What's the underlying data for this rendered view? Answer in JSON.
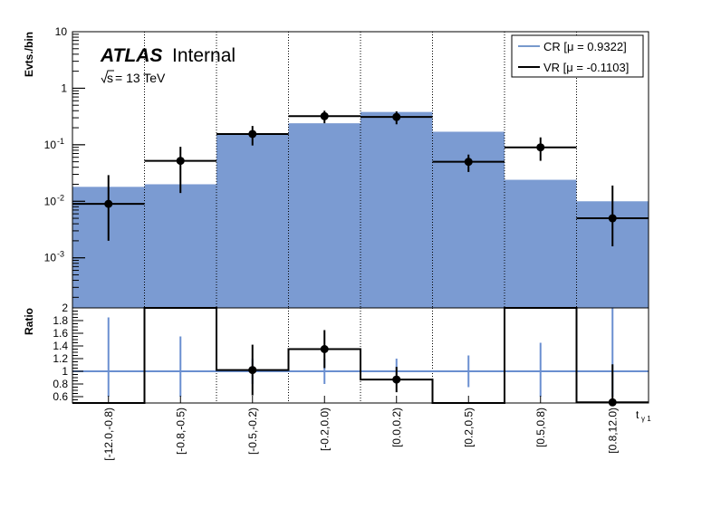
{
  "chart_data": [
    {
      "type": "bar",
      "panel": "main",
      "y_scale": "log",
      "ylabel": "Evts./bin",
      "ylim": [
        0.00013,
        10
      ],
      "y_tick_labels": [
        {
          "value": 0.001,
          "base": "10",
          "exp": "-3"
        },
        {
          "value": 0.01,
          "base": "10",
          "exp": "-2"
        },
        {
          "value": 0.1,
          "base": "10",
          "exp": "-1"
        },
        {
          "value": 1,
          "base": "1",
          "exp": ""
        },
        {
          "value": 10,
          "base": "10",
          "exp": ""
        }
      ],
      "categories": [
        "[-12.0,-0.8)",
        "[-0.8,-0.5)",
        "[-0.5,-0.2)",
        "[-0.2,0.0)",
        "[0.0,0.2)",
        "[0.2,0.5)",
        "[0.5,0.8)",
        "[0.8,12.0)"
      ],
      "series": [
        {
          "name": "CR [μ = 0.9322]",
          "style": "filled",
          "values": [
            0.018,
            0.02,
            0.16,
            0.24,
            0.38,
            0.17,
            0.024,
            0.01
          ]
        },
        {
          "name": "VR [μ = -0.1103]",
          "style": "points",
          "values": [
            0.009,
            0.052,
            0.155,
            0.32,
            0.31,
            0.05,
            0.09,
            0.005
          ],
          "err_low": [
            0.007,
            0.038,
            0.058,
            0.08,
            0.08,
            0.017,
            0.038,
            0.0034
          ],
          "err_high": [
            0.02,
            0.04,
            0.06,
            0.08,
            0.08,
            0.017,
            0.045,
            0.014
          ]
        }
      ]
    },
    {
      "type": "line",
      "panel": "ratio",
      "ylabel": "Ratio",
      "ylim": [
        0.5,
        2.0
      ],
      "y_ticks": [
        0.6,
        0.8,
        1.0,
        1.2,
        1.4,
        1.6,
        1.8,
        2.0
      ],
      "y_tick_labels": [
        "0.6",
        "0.8",
        "1",
        "1.2",
        "1.4",
        "1.6",
        "1.8",
        "2"
      ],
      "xlabel": "t",
      "xlabel_sub": "γ 1",
      "categories": [
        "[-12.0,-0.8)",
        "[-0.8,-0.5)",
        "[-0.5,-0.2)",
        "[-0.2,0.0)",
        "[0.0,0.2)",
        "[0.2,0.5)",
        "[0.5,0.8)",
        "[0.8,12.0)"
      ],
      "reference_line": 1.0,
      "series": [
        {
          "name": "CR",
          "values": [
            1,
            1,
            1,
            1,
            1,
            1,
            1,
            1
          ],
          "err_low": [
            0.4,
            0.4,
            0.2,
            0.2,
            0.2,
            0.25,
            0.4,
            0.4
          ],
          "err_high": [
            0.85,
            0.55,
            0.2,
            0.2,
            0.2,
            0.25,
            0.45,
            1.0
          ]
        },
        {
          "name": "VR",
          "values": [
            0.5,
            2.0,
            1.02,
            1.35,
            0.87,
            0.5,
            2.0,
            0.51
          ],
          "show_points": [
            false,
            false,
            true,
            true,
            true,
            false,
            false,
            true
          ],
          "err_low": [
            0,
            0,
            0.4,
            0.3,
            0.2,
            0,
            0,
            0.1
          ],
          "err_high": [
            0,
            0,
            0.4,
            0.3,
            0.2,
            0,
            0,
            0.6
          ]
        }
      ]
    }
  ],
  "labels": {
    "atlas": "ATLAS",
    "internal": "Internal",
    "sqrt_s": "s",
    "energy": " = 13 TeV"
  },
  "legend": {
    "position": "top-right",
    "items": [
      {
        "label": "CR [μ = 0.9322]",
        "color": "#7799cc"
      },
      {
        "label": "VR [μ = -0.1103]",
        "color": "#000000"
      }
    ]
  },
  "colors": {
    "cr_fill": "#7b9bd2",
    "cr_line": "#6a8fd0",
    "vr": "#000000",
    "grid": "#000000"
  }
}
